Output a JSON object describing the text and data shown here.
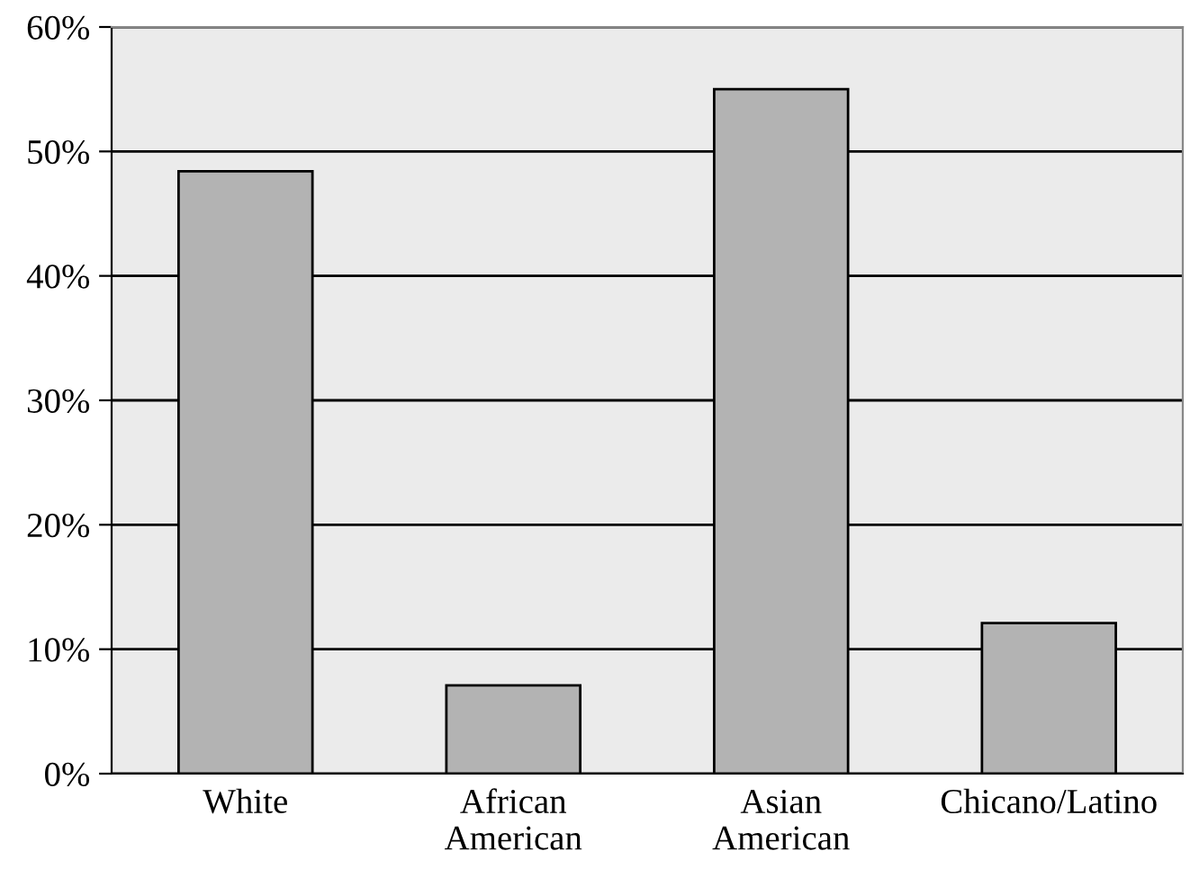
{
  "chart_data": {
    "type": "bar",
    "categories": [
      "White",
      "African American",
      "Asian American",
      "Chicano/Latino"
    ],
    "values": [
      48.4,
      7.1,
      55.0,
      12.1
    ],
    "color": "#b3b3b3",
    "ylim": [
      0,
      60
    ],
    "yticks": [
      {
        "value": 0,
        "label": "0%"
      },
      {
        "value": 10,
        "label": "10%"
      },
      {
        "value": 20,
        "label": "20%"
      },
      {
        "value": 30,
        "label": "30%"
      },
      {
        "value": 40,
        "label": "40%"
      },
      {
        "value": 50,
        "label": "50%"
      },
      {
        "value": 60,
        "label": "60%"
      }
    ],
    "grid": "y"
  }
}
